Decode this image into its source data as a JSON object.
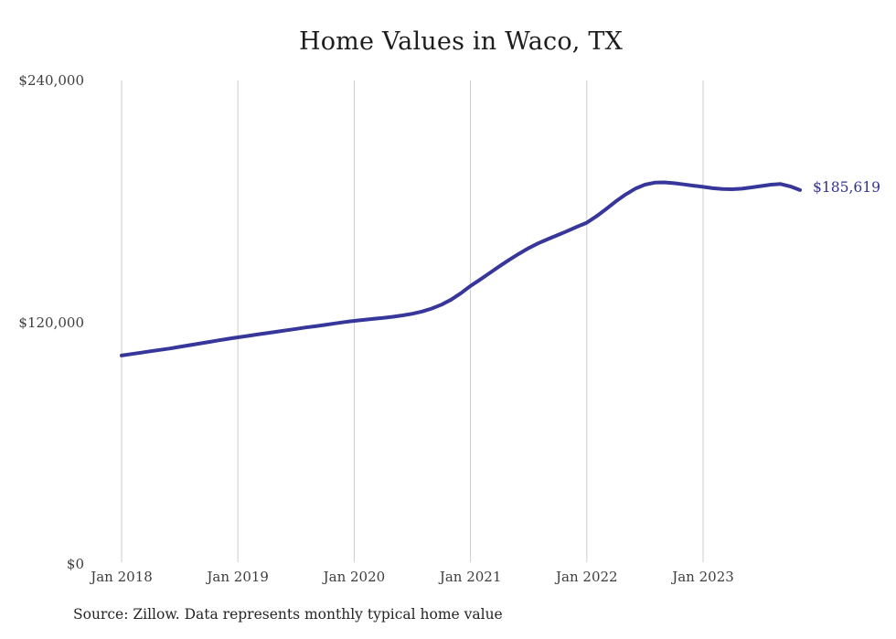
{
  "title": "Home Values in Waco, TX",
  "source_note": "Source: Zillow. Data represents monthly typical home value",
  "annotation": {
    "latest_value_label": "$185,619"
  },
  "colors": {
    "line": "#37379b",
    "grid": "#cccccc",
    "axis_text": "#3d3d3d",
    "title_text": "#1d1d1d",
    "end_label_text": "#32328f",
    "background": "#ffffff"
  },
  "y_axis": {
    "ticks": [
      {
        "label": "$240,000",
        "value": 240000
      },
      {
        "label": "$120,000",
        "value": 120000
      },
      {
        "label": "$0",
        "value": 0
      }
    ]
  },
  "x_axis": {
    "ticks": [
      {
        "label": "Jan 2018",
        "month_index": 0
      },
      {
        "label": "Jan 2019",
        "month_index": 12
      },
      {
        "label": "Jan 2020",
        "month_index": 24
      },
      {
        "label": "Jan 2021",
        "month_index": 36
      },
      {
        "label": "Jan 2022",
        "month_index": 48
      },
      {
        "label": "Jan 2023",
        "month_index": 60
      }
    ]
  },
  "chart_data": {
    "type": "line",
    "title": "Home Values in Waco, TX",
    "ylabel": "",
    "xlabel": "",
    "ylim": [
      0,
      240000
    ],
    "yticks": [
      0,
      120000,
      240000
    ],
    "xtick_labels": [
      "Jan 2018",
      "Jan 2019",
      "Jan 2020",
      "Jan 2021",
      "Jan 2022",
      "Jan 2023"
    ],
    "grid": "vertical-only",
    "legend": "none",
    "line_color": "#37379b",
    "final_value_label": "$185,619",
    "x": [
      "2018-01",
      "2018-02",
      "2018-03",
      "2018-04",
      "2018-05",
      "2018-06",
      "2018-07",
      "2018-08",
      "2018-09",
      "2018-10",
      "2018-11",
      "2018-12",
      "2019-01",
      "2019-02",
      "2019-03",
      "2019-04",
      "2019-05",
      "2019-06",
      "2019-07",
      "2019-08",
      "2019-09",
      "2019-10",
      "2019-11",
      "2019-12",
      "2020-01",
      "2020-02",
      "2020-03",
      "2020-04",
      "2020-05",
      "2020-06",
      "2020-07",
      "2020-08",
      "2020-09",
      "2020-10",
      "2020-11",
      "2020-12",
      "2021-01",
      "2021-02",
      "2021-03",
      "2021-04",
      "2021-05",
      "2021-06",
      "2021-07",
      "2021-08",
      "2021-09",
      "2021-10",
      "2021-11",
      "2021-12",
      "2022-01",
      "2022-02",
      "2022-03",
      "2022-04",
      "2022-05",
      "2022-06",
      "2022-07",
      "2022-08",
      "2022-09",
      "2022-10",
      "2022-11",
      "2022-12",
      "2023-01",
      "2023-02",
      "2023-03",
      "2023-04",
      "2023-05",
      "2023-06",
      "2023-07",
      "2023-08",
      "2023-09",
      "2023-10",
      "2023-11"
    ],
    "values": [
      103500,
      104200,
      104900,
      105600,
      106300,
      107000,
      107800,
      108600,
      109400,
      110200,
      111000,
      111800,
      112500,
      113200,
      113900,
      114600,
      115300,
      116000,
      116700,
      117400,
      118000,
      118700,
      119400,
      120100,
      120700,
      121200,
      121700,
      122200,
      122700,
      123400,
      124200,
      125300,
      126800,
      128700,
      131200,
      134400,
      138000,
      141200,
      144500,
      147800,
      151000,
      154000,
      156800,
      159200,
      161300,
      163300,
      165300,
      167400,
      169400,
      172600,
      176200,
      180000,
      183400,
      186300,
      188300,
      189300,
      189400,
      189000,
      188400,
      187800,
      187200,
      186500,
      186100,
      186000,
      186300,
      186900,
      187600,
      188300,
      188600,
      187400,
      185619
    ]
  }
}
